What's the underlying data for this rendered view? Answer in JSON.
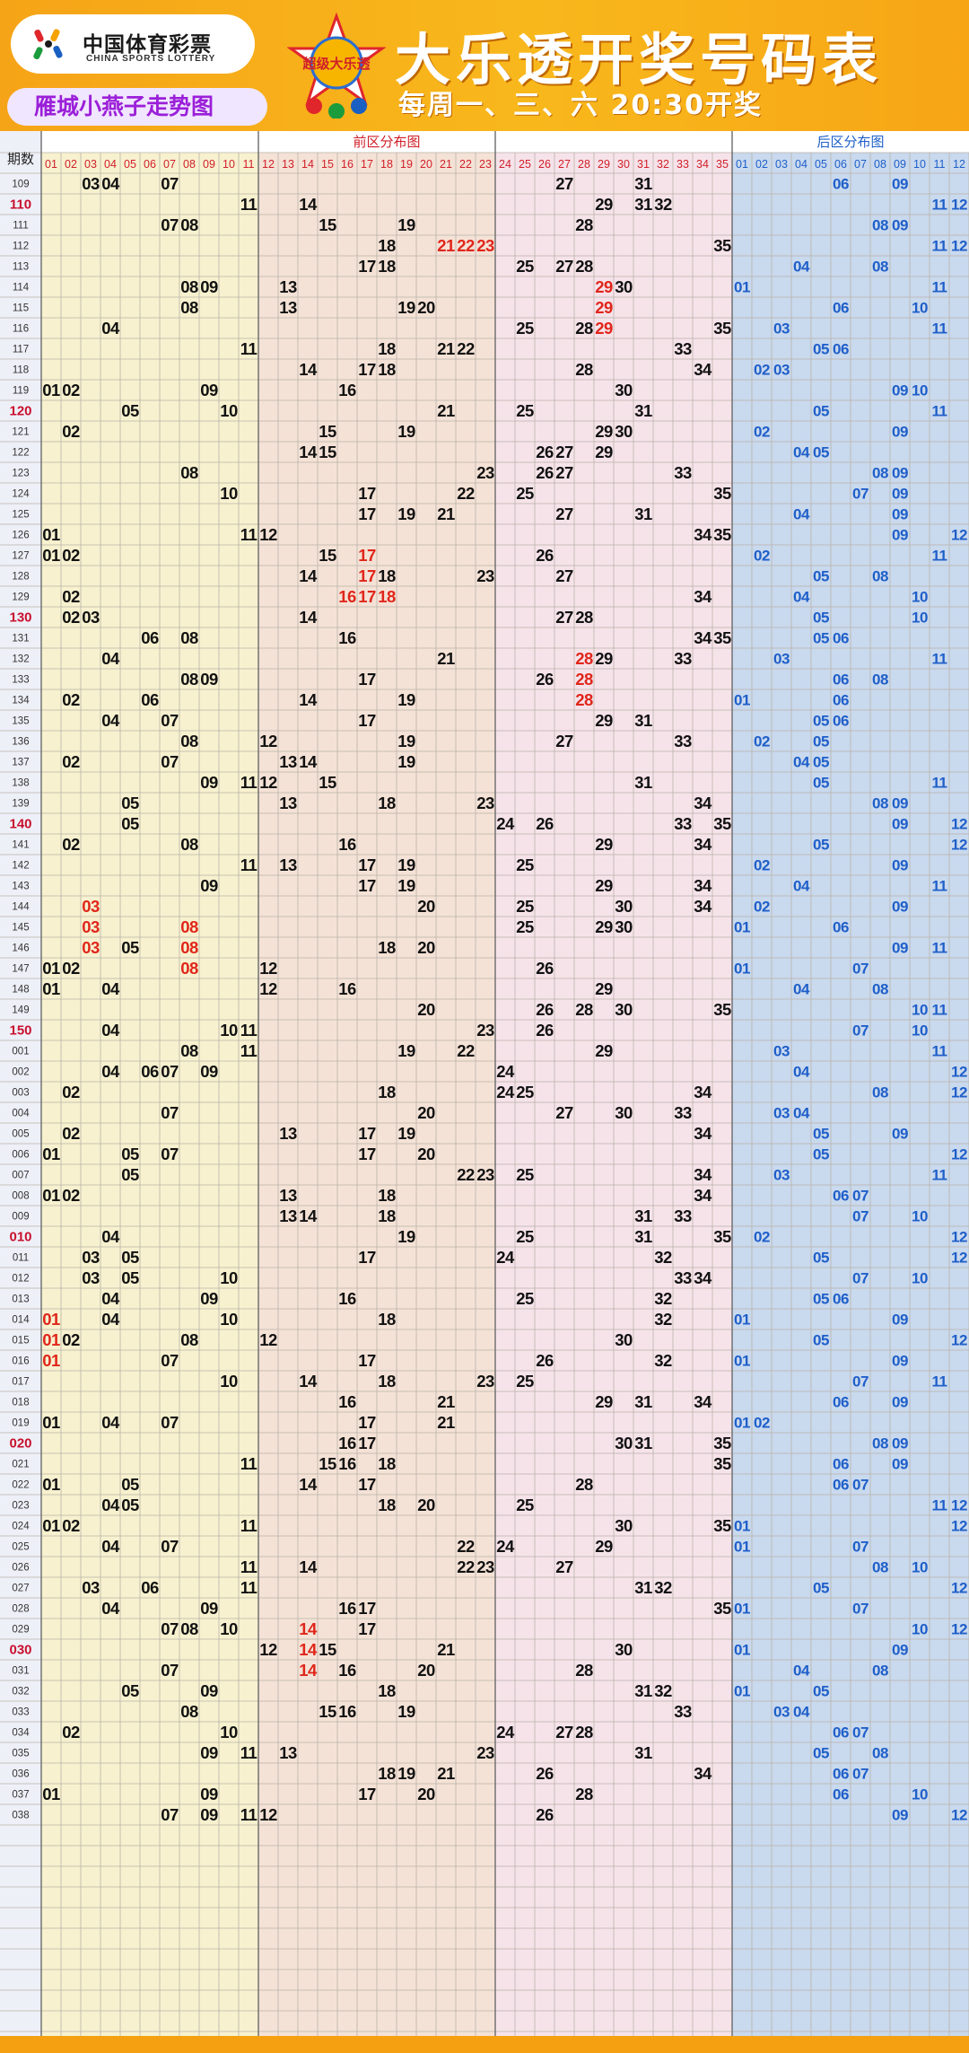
{
  "header": {
    "logo_cn": "中国体育彩票",
    "logo_en": "CHINA SPORTS LOTTERY",
    "subtitle_tag": "雁城小燕子走势图",
    "emblem_text": "超级大乐透",
    "title": "大乐透开奖号码表",
    "draw_info": "每周一、三、六  20:30开奖"
  },
  "colors": {
    "front_a": "#f7f1cf",
    "front_b": "#f5e2d6",
    "front_c": "#f6e3ea",
    "back": "#c9d9ee",
    "grid_line": "#8a8a8a",
    "main_number": "#111111",
    "highlight_number": "#e0261b",
    "back_number": "#1f5fc9",
    "period_highlight": "#c8102e",
    "header_text": "#d0202a",
    "header_back_text": "#1f5fc9"
  },
  "chart_data": {
    "type": "table",
    "period_header": "期数",
    "front_section_label": "前区分布图",
    "back_section_label": "后区分布图",
    "front_columns": [
      "01",
      "02",
      "03",
      "04",
      "05",
      "06",
      "07",
      "08",
      "09",
      "10",
      "11",
      "12",
      "13",
      "14",
      "15",
      "16",
      "17",
      "18",
      "19",
      "20",
      "21",
      "22",
      "23",
      "24",
      "25",
      "26",
      "27",
      "28",
      "29",
      "30",
      "31",
      "32",
      "33",
      "34",
      "35"
    ],
    "back_columns": [
      "01",
      "02",
      "03",
      "04",
      "05",
      "06",
      "07",
      "08",
      "09",
      "10",
      "11",
      "12"
    ],
    "highlight_periods": [
      "110",
      "120",
      "130",
      "140",
      "150",
      "010",
      "020",
      "030"
    ],
    "rows": [
      {
        "p": "109",
        "f": [
          3,
          4,
          7,
          27,
          31
        ],
        "b": [
          6,
          9
        ],
        "fr": [],
        "br": []
      },
      {
        "p": "110",
        "f": [
          11,
          14,
          29,
          31,
          32
        ],
        "b": [
          11,
          12
        ],
        "fr": [],
        "br": []
      },
      {
        "p": "111",
        "f": [
          7,
          8,
          15,
          19,
          28
        ],
        "b": [
          8,
          9
        ],
        "fr": [],
        "br": []
      },
      {
        "p": "112",
        "f": [
          18,
          21,
          22,
          23,
          35
        ],
        "b": [
          11,
          12
        ],
        "fr": [
          21,
          22,
          23
        ],
        "br": []
      },
      {
        "p": "113",
        "f": [
          17,
          18,
          25,
          27,
          28
        ],
        "b": [
          4,
          8
        ],
        "fr": [],
        "br": []
      },
      {
        "p": "114",
        "f": [
          8,
          9,
          13,
          29,
          30
        ],
        "b": [
          1,
          11
        ],
        "fr": [
          29
        ],
        "br": []
      },
      {
        "p": "115",
        "f": [
          8,
          13,
          19,
          20,
          29
        ],
        "b": [
          6,
          10
        ],
        "fr": [
          29
        ],
        "br": []
      },
      {
        "p": "116",
        "f": [
          4,
          25,
          28,
          29,
          35
        ],
        "b": [
          3,
          11
        ],
        "fr": [
          29
        ],
        "br": []
      },
      {
        "p": "117",
        "f": [
          11,
          18,
          21,
          22,
          33
        ],
        "b": [
          5,
          6
        ],
        "fr": [],
        "br": []
      },
      {
        "p": "118",
        "f": [
          14,
          17,
          18,
          28,
          34
        ],
        "b": [
          2,
          3
        ],
        "fr": [],
        "br": []
      },
      {
        "p": "119",
        "f": [
          1,
          2,
          9,
          16,
          30
        ],
        "b": [
          9,
          10
        ],
        "fr": [],
        "br": []
      },
      {
        "p": "120",
        "f": [
          5,
          10,
          21,
          25,
          31
        ],
        "b": [
          5,
          11
        ],
        "fr": [],
        "br": []
      },
      {
        "p": "121",
        "f": [
          2,
          15,
          19,
          29,
          30
        ],
        "b": [
          2,
          9
        ],
        "fr": [],
        "br": []
      },
      {
        "p": "122",
        "f": [
          14,
          15,
          26,
          27,
          29
        ],
        "b": [
          4,
          5
        ],
        "fr": [],
        "br": []
      },
      {
        "p": "123",
        "f": [
          8,
          23,
          26,
          27,
          33
        ],
        "b": [
          8,
          9
        ],
        "fr": [],
        "br": []
      },
      {
        "p": "124",
        "f": [
          10,
          17,
          22,
          25,
          35
        ],
        "b": [
          7,
          9
        ],
        "fr": [],
        "br": []
      },
      {
        "p": "125",
        "f": [
          17,
          19,
          21,
          27,
          31
        ],
        "b": [
          4,
          9
        ],
        "fr": [],
        "br": []
      },
      {
        "p": "126",
        "f": [
          1,
          11,
          12,
          34,
          35
        ],
        "b": [
          9,
          12
        ],
        "fr": [],
        "br": []
      },
      {
        "p": "127",
        "f": [
          1,
          2,
          15,
          17,
          26
        ],
        "b": [
          2,
          11
        ],
        "fr": [
          17
        ],
        "br": []
      },
      {
        "p": "128",
        "f": [
          14,
          17,
          18,
          23,
          27
        ],
        "b": [
          5,
          8
        ],
        "fr": [
          17
        ],
        "br": []
      },
      {
        "p": "129",
        "f": [
          2,
          16,
          17,
          18,
          34
        ],
        "b": [
          4,
          10
        ],
        "fr": [
          16,
          17,
          18
        ],
        "br": []
      },
      {
        "p": "130",
        "f": [
          2,
          3,
          14,
          27,
          28
        ],
        "b": [
          5,
          10
        ],
        "fr": [],
        "br": []
      },
      {
        "p": "131",
        "f": [
          6,
          8,
          16,
          34,
          35
        ],
        "b": [
          5,
          6
        ],
        "fr": [],
        "br": []
      },
      {
        "p": "132",
        "f": [
          4,
          21,
          28,
          29,
          33
        ],
        "b": [
          3,
          11
        ],
        "fr": [
          28
        ],
        "br": []
      },
      {
        "p": "133",
        "f": [
          8,
          9,
          17,
          26,
          28
        ],
        "b": [
          6,
          8
        ],
        "fr": [
          28
        ],
        "br": []
      },
      {
        "p": "134",
        "f": [
          2,
          6,
          14,
          19,
          28
        ],
        "b": [
          1,
          6
        ],
        "fr": [
          28
        ],
        "br": []
      },
      {
        "p": "135",
        "f": [
          4,
          7,
          17,
          29,
          31
        ],
        "b": [
          5,
          6
        ],
        "fr": [],
        "br": []
      },
      {
        "p": "136",
        "f": [
          8,
          12,
          19,
          27,
          33
        ],
        "b": [
          2,
          5
        ],
        "fr": [],
        "br": []
      },
      {
        "p": "137",
        "f": [
          2,
          7,
          13,
          14,
          19
        ],
        "b": [
          4,
          5
        ],
        "fr": [],
        "br": []
      },
      {
        "p": "138",
        "f": [
          9,
          11,
          12,
          15,
          31
        ],
        "b": [
          5,
          11
        ],
        "fr": [],
        "br": []
      },
      {
        "p": "139",
        "f": [
          5,
          13,
          18,
          23,
          34
        ],
        "b": [
          8,
          9
        ],
        "fr": [],
        "br": []
      },
      {
        "p": "140",
        "f": [
          5,
          24,
          26,
          33,
          35
        ],
        "b": [
          9,
          12
        ],
        "fr": [],
        "br": []
      },
      {
        "p": "141",
        "f": [
          2,
          8,
          16,
          29,
          34
        ],
        "b": [
          5,
          12
        ],
        "fr": [],
        "br": []
      },
      {
        "p": "142",
        "f": [
          11,
          13,
          17,
          19,
          25
        ],
        "b": [
          2,
          9
        ],
        "fr": [],
        "br": []
      },
      {
        "p": "143",
        "f": [
          9,
          17,
          19,
          29,
          34
        ],
        "b": [
          4,
          11
        ],
        "fr": [],
        "br": []
      },
      {
        "p": "144",
        "f": [
          3,
          20,
          25,
          30,
          34
        ],
        "b": [
          2,
          9
        ],
        "fr": [
          3
        ],
        "br": []
      },
      {
        "p": "145",
        "f": [
          3,
          8,
          25,
          29,
          30
        ],
        "b": [
          1,
          6
        ],
        "fr": [
          3,
          8
        ],
        "br": []
      },
      {
        "p": "146",
        "f": [
          3,
          5,
          8,
          18,
          20
        ],
        "b": [
          9,
          11
        ],
        "fr": [
          3,
          8
        ],
        "br": []
      },
      {
        "p": "147",
        "f": [
          1,
          2,
          8,
          12,
          26
        ],
        "b": [
          1,
          7
        ],
        "fr": [
          8
        ],
        "br": []
      },
      {
        "p": "148",
        "f": [
          1,
          4,
          12,
          16,
          29
        ],
        "b": [
          4,
          8
        ],
        "fr": [],
        "br": []
      },
      {
        "p": "149",
        "f": [
          20,
          26,
          28,
          30,
          35
        ],
        "b": [
          10,
          11
        ],
        "fr": [],
        "br": []
      },
      {
        "p": "150",
        "f": [
          4,
          10,
          11,
          23,
          26
        ],
        "b": [
          7,
          10
        ],
        "fr": [],
        "br": []
      },
      {
        "p": "001",
        "f": [
          8,
          11,
          19,
          22,
          29
        ],
        "b": [
          3,
          11
        ],
        "fr": [],
        "br": []
      },
      {
        "p": "002",
        "f": [
          4,
          6,
          7,
          9,
          24
        ],
        "b": [
          4,
          12
        ],
        "fr": [],
        "br": []
      },
      {
        "p": "003",
        "f": [
          2,
          18,
          24,
          25,
          34
        ],
        "b": [
          8,
          12
        ],
        "fr": [],
        "br": []
      },
      {
        "p": "004",
        "f": [
          7,
          20,
          27,
          30,
          33
        ],
        "b": [
          3,
          4
        ],
        "fr": [],
        "br": []
      },
      {
        "p": "005",
        "f": [
          2,
          13,
          17,
          19,
          34
        ],
        "b": [
          5,
          9
        ],
        "fr": [],
        "br": []
      },
      {
        "p": "006",
        "f": [
          1,
          5,
          7,
          17,
          20
        ],
        "b": [
          5,
          12
        ],
        "fr": [],
        "br": []
      },
      {
        "p": "007",
        "f": [
          5,
          22,
          23,
          25,
          34
        ],
        "b": [
          3,
          11
        ],
        "fr": [],
        "br": []
      },
      {
        "p": "008",
        "f": [
          1,
          2,
          13,
          18,
          34
        ],
        "b": [
          6,
          7
        ],
        "fr": [],
        "br": []
      },
      {
        "p": "009",
        "f": [
          13,
          14,
          18,
          31,
          33
        ],
        "b": [
          7,
          10
        ],
        "fr": [],
        "br": []
      },
      {
        "p": "010",
        "f": [
          4,
          19,
          25,
          31,
          35
        ],
        "b": [
          2,
          12
        ],
        "fr": [],
        "br": []
      },
      {
        "p": "011",
        "f": [
          3,
          5,
          17,
          24,
          32
        ],
        "b": [
          5,
          12
        ],
        "fr": [],
        "br": []
      },
      {
        "p": "012",
        "f": [
          3,
          5,
          10,
          33,
          34
        ],
        "b": [
          7,
          10
        ],
        "fr": [],
        "br": []
      },
      {
        "p": "013",
        "f": [
          4,
          9,
          16,
          25,
          32
        ],
        "b": [
          5,
          6
        ],
        "fr": [],
        "br": []
      },
      {
        "p": "014",
        "f": [
          1,
          4,
          10,
          18,
          32
        ],
        "b": [
          1,
          9
        ],
        "fr": [
          1
        ],
        "br": []
      },
      {
        "p": "015",
        "f": [
          1,
          2,
          8,
          12,
          30
        ],
        "b": [
          5,
          12
        ],
        "fr": [
          1
        ],
        "br": []
      },
      {
        "p": "016",
        "f": [
          1,
          7,
          17,
          26,
          32
        ],
        "b": [
          1,
          9
        ],
        "fr": [
          1
        ],
        "br": []
      },
      {
        "p": "017",
        "f": [
          10,
          14,
          18,
          23,
          25
        ],
        "b": [
          7,
          11
        ],
        "fr": [],
        "br": []
      },
      {
        "p": "018",
        "f": [
          16,
          21,
          29,
          31,
          34
        ],
        "b": [
          6,
          9
        ],
        "fr": [],
        "br": []
      },
      {
        "p": "019",
        "f": [
          1,
          4,
          7,
          17,
          21
        ],
        "b": [
          1,
          2
        ],
        "fr": [],
        "br": []
      },
      {
        "p": "020",
        "f": [
          16,
          17,
          30,
          31,
          35
        ],
        "b": [
          8,
          9
        ],
        "fr": [],
        "br": []
      },
      {
        "p": "021",
        "f": [
          11,
          15,
          16,
          18,
          35
        ],
        "b": [
          6,
          9
        ],
        "fr": [],
        "br": []
      },
      {
        "p": "022",
        "f": [
          1,
          5,
          14,
          17,
          28
        ],
        "b": [
          6,
          7
        ],
        "fr": [],
        "br": []
      },
      {
        "p": "023",
        "f": [
          4,
          5,
          18,
          20,
          25
        ],
        "b": [
          11,
          12
        ],
        "fr": [],
        "br": []
      },
      {
        "p": "024",
        "f": [
          1,
          2,
          11,
          30,
          35
        ],
        "b": [
          1,
          12
        ],
        "fr": [],
        "br": []
      },
      {
        "p": "025",
        "f": [
          4,
          7,
          22,
          24,
          29
        ],
        "b": [
          1,
          7
        ],
        "fr": [],
        "br": []
      },
      {
        "p": "026",
        "f": [
          11,
          14,
          22,
          23,
          27
        ],
        "b": [
          8,
          10
        ],
        "fr": [],
        "br": []
      },
      {
        "p": "027",
        "f": [
          3,
          6,
          11,
          31,
          32
        ],
        "b": [
          5,
          12
        ],
        "fr": [],
        "br": []
      },
      {
        "p": "028",
        "f": [
          4,
          9,
          16,
          17,
          35
        ],
        "b": [
          1,
          7
        ],
        "fr": [],
        "br": []
      },
      {
        "p": "029",
        "f": [
          7,
          8,
          10,
          14,
          17
        ],
        "b": [
          10,
          12
        ],
        "fr": [
          14
        ],
        "br": []
      },
      {
        "p": "030",
        "f": [
          12,
          14,
          15,
          21,
          30
        ],
        "b": [
          1,
          9
        ],
        "fr": [
          14
        ],
        "br": []
      },
      {
        "p": "031",
        "f": [
          7,
          14,
          16,
          20,
          28
        ],
        "b": [
          4,
          8
        ],
        "fr": [
          14
        ],
        "br": []
      },
      {
        "p": "032",
        "f": [
          5,
          9,
          18,
          31,
          32
        ],
        "b": [
          1,
          5
        ],
        "fr": [],
        "br": []
      },
      {
        "p": "033",
        "f": [
          8,
          15,
          16,
          19,
          33
        ],
        "b": [
          3,
          4
        ],
        "fr": [],
        "br": []
      },
      {
        "p": "034",
        "f": [
          2,
          10,
          24,
          27,
          28
        ],
        "b": [
          6,
          7
        ],
        "fr": [],
        "br": []
      },
      {
        "p": "035",
        "f": [
          9,
          11,
          13,
          23,
          31
        ],
        "b": [
          5,
          8
        ],
        "fr": [],
        "br": []
      },
      {
        "p": "036",
        "f": [
          18,
          19,
          21,
          26,
          34
        ],
        "b": [
          6,
          7
        ],
        "fr": [],
        "br": []
      },
      {
        "p": "037",
        "f": [
          1,
          9,
          17,
          20,
          28
        ],
        "b": [
          6,
          10
        ],
        "fr": [],
        "br": []
      },
      {
        "p": "038",
        "f": [
          7,
          9,
          11,
          12,
          26
        ],
        "b": [
          9,
          12
        ],
        "fr": [],
        "br": []
      }
    ]
  }
}
